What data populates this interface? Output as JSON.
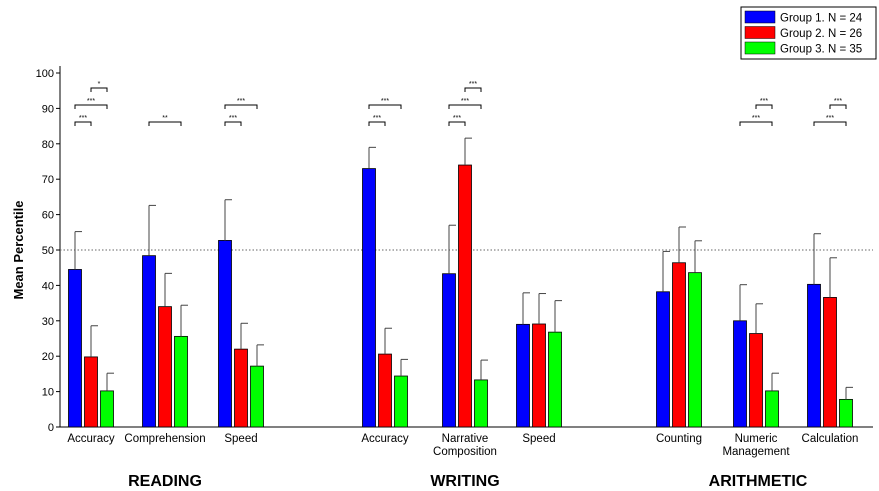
{
  "chart_data": {
    "type": "bar",
    "ylabel": "Mean Percentile",
    "ylim": [
      0,
      100
    ],
    "yticks": [
      0,
      10,
      20,
      30,
      40,
      50,
      60,
      70,
      80,
      90,
      100
    ],
    "reference_line": 50,
    "grid": false,
    "legend_position": "top-right",
    "series": [
      {
        "name": "Group 1. N = 24",
        "color": "#0000ff"
      },
      {
        "name": "Group 2. N = 26",
        "color": "#ff0000"
      },
      {
        "name": "Group 3. N = 35",
        "color": "#00ff00"
      }
    ],
    "domains": [
      {
        "label": "READING",
        "categories": [
          {
            "label": [
              "Accuracy"
            ],
            "values": [
              44.5,
              19.8,
              10.2
            ],
            "errors": [
              10.7,
              8.8,
              5.0
            ],
            "sig": [
              {
                "from": 0,
                "to": 1,
                "label": "***",
                "level": 0
              },
              {
                "from": 0,
                "to": 2,
                "label": "***",
                "level": 1
              },
              {
                "from": 1,
                "to": 2,
                "label": "*",
                "level": 2
              }
            ]
          },
          {
            "label": [
              "Comprehension"
            ],
            "values": [
              48.4,
              34.0,
              25.6
            ],
            "errors": [
              14.2,
              9.4,
              8.8
            ],
            "sig": [
              {
                "from": 0,
                "to": 2,
                "label": "**",
                "level": 0
              }
            ]
          },
          {
            "label": [
              "Speed"
            ],
            "values": [
              52.7,
              22.0,
              17.2
            ],
            "errors": [
              11.5,
              7.3,
              6.0
            ],
            "sig": [
              {
                "from": 0,
                "to": 1,
                "label": "***",
                "level": 0
              },
              {
                "from": 0,
                "to": 2,
                "label": "***",
                "level": 1
              }
            ]
          }
        ]
      },
      {
        "label": "WRITING",
        "categories": [
          {
            "label": [
              "Accuracy"
            ],
            "values": [
              73.0,
              20.6,
              14.4
            ],
            "errors": [
              6.0,
              7.3,
              4.7
            ],
            "sig": [
              {
                "from": 0,
                "to": 1,
                "label": "***",
                "level": 0
              },
              {
                "from": 0,
                "to": 2,
                "label": "***",
                "level": 1
              }
            ]
          },
          {
            "label": [
              "Narrative",
              "Composition"
            ],
            "values": [
              43.3,
              74.0,
              13.3
            ],
            "errors": [
              13.7,
              7.6,
              5.6
            ],
            "sig": [
              {
                "from": 0,
                "to": 1,
                "label": "***",
                "level": 0
              },
              {
                "from": 0,
                "to": 2,
                "label": "***",
                "level": 1
              },
              {
                "from": 1,
                "to": 2,
                "label": "***",
                "level": 2
              }
            ]
          },
          {
            "label": [
              "Speed"
            ],
            "values": [
              29.0,
              29.1,
              26.8
            ],
            "errors": [
              8.9,
              8.6,
              8.9
            ],
            "sig": []
          }
        ]
      },
      {
        "label": "ARITHMETIC",
        "categories": [
          {
            "label": [
              "Counting"
            ],
            "values": [
              38.2,
              46.4,
              43.6
            ],
            "errors": [
              11.4,
              10.1,
              9.0
            ],
            "sig": []
          },
          {
            "label": [
              "Numeric",
              "Management"
            ],
            "values": [
              30.0,
              26.4,
              10.2
            ],
            "errors": [
              10.2,
              8.4,
              5.0
            ],
            "sig": [
              {
                "from": 0,
                "to": 2,
                "label": "***",
                "level": 0
              },
              {
                "from": 1,
                "to": 2,
                "label": "***",
                "level": 1
              }
            ]
          },
          {
            "label": [
              "Calculation"
            ],
            "values": [
              40.3,
              36.6,
              7.8
            ],
            "errors": [
              14.3,
              11.2,
              3.4
            ],
            "sig": [
              {
                "from": 0,
                "to": 2,
                "label": "***",
                "level": 0
              },
              {
                "from": 1,
                "to": 2,
                "label": "***",
                "level": 1
              }
            ]
          }
        ]
      }
    ]
  }
}
